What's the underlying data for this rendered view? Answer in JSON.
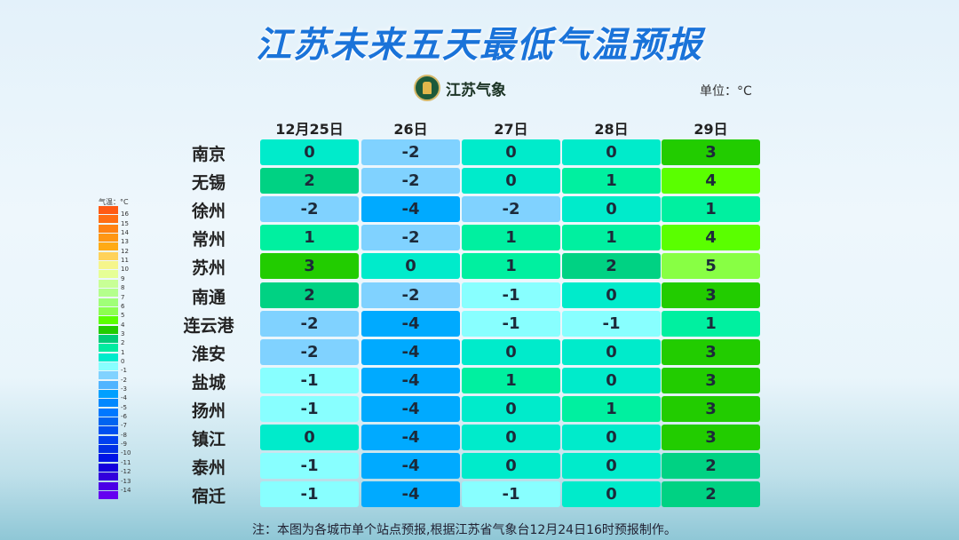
{
  "title": "江苏未来五天最低气温预报",
  "logo_text": "江苏气象",
  "unit": "单位：°C",
  "note": "注：本图为各城市单个站点预报,根据江苏省气象台12月24日16时预报制作。",
  "chart_data": {
    "type": "table",
    "title": "江苏未来五天最低气温预报",
    "columns": [
      "12月25日",
      "26日",
      "27日",
      "28日",
      "29日"
    ],
    "rows": [
      {
        "city": "南京",
        "values": [
          0,
          -2,
          0,
          0,
          3
        ]
      },
      {
        "city": "无锡",
        "values": [
          2,
          -2,
          0,
          1,
          4
        ]
      },
      {
        "city": "徐州",
        "values": [
          -2,
          -4,
          -2,
          0,
          1
        ]
      },
      {
        "city": "常州",
        "values": [
          1,
          -2,
          1,
          1,
          4
        ]
      },
      {
        "city": "苏州",
        "values": [
          3,
          0,
          1,
          2,
          5
        ]
      },
      {
        "city": "南通",
        "values": [
          2,
          -2,
          -1,
          0,
          3
        ]
      },
      {
        "city": "连云港",
        "values": [
          -2,
          -4,
          -1,
          -1,
          1
        ]
      },
      {
        "city": "淮安",
        "values": [
          -2,
          -4,
          0,
          0,
          3
        ]
      },
      {
        "city": "盐城",
        "values": [
          -1,
          -4,
          1,
          0,
          3
        ]
      },
      {
        "city": "扬州",
        "values": [
          -1,
          -4,
          0,
          1,
          3
        ]
      },
      {
        "city": "镇江",
        "values": [
          0,
          -4,
          0,
          0,
          3
        ]
      },
      {
        "city": "泰州",
        "values": [
          -1,
          -4,
          0,
          0,
          2
        ]
      },
      {
        "city": "宿迁",
        "values": [
          -1,
          -4,
          -1,
          0,
          2
        ]
      }
    ],
    "legend": {
      "title": "气温：°C",
      "labels": [
        "16",
        "15",
        "14",
        "13",
        "12",
        "11",
        "10",
        "9",
        "8",
        "7",
        "6",
        "5",
        "4",
        "3",
        "2",
        "1",
        "0",
        "-1",
        "-2",
        "-3",
        "-4",
        "-5",
        "-6",
        "-7",
        "-8",
        "-9",
        "-10",
        "-11",
        "-12",
        "-13",
        "-14"
      ],
      "colors": [
        "#ff5a14",
        "#ff6e14",
        "#ff8214",
        "#ff9614",
        "#ffaa14",
        "#ffd25a",
        "#f5f58c",
        "#e6ff96",
        "#c8ff96",
        "#b4ff8c",
        "#a0ff78",
        "#8cff50",
        "#5aff00",
        "#22cc00",
        "#00cc78",
        "#00eba0",
        "#00ebcb",
        "#88ffff",
        "#80d2ff",
        "#50b4ff",
        "#00a0ff",
        "#0088ff",
        "#0078ff",
        "#0064f0",
        "#0050f0",
        "#0040f0",
        "#0030e6",
        "#0014e6",
        "#1400dc",
        "#3200dc",
        "#4b00e6",
        "#6400f0"
      ]
    },
    "value_colors": {
      "5": "#88ff44",
      "4": "#5aff00",
      "3": "#22cc00",
      "2": "#00d283",
      "1": "#00f0a0",
      "0": "#00ebcb",
      "-1": "#88ffff",
      "-2": "#80d2ff",
      "-4": "#00aaff"
    }
  }
}
